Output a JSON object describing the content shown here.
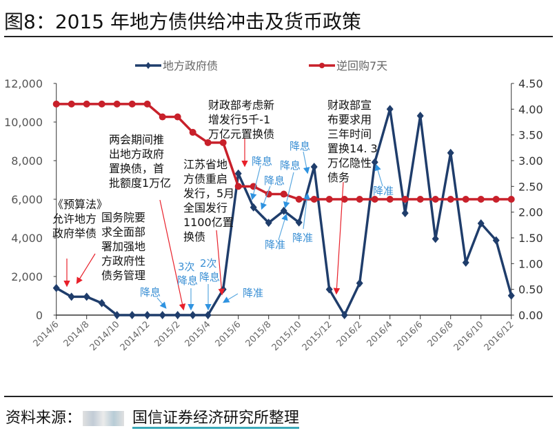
{
  "title": "图8：2015 年地方债供给冲击及货币政策",
  "source": {
    "label": "资料来源：",
    "org": "国信证券经济研究所整理"
  },
  "chart_data": {
    "type": "line",
    "title": "图8：2015 年地方债供给冲击及货币政策",
    "x": [
      "2014/6",
      "2014/7",
      "2014/8",
      "2014/9",
      "2014/10",
      "2014/11",
      "2014/12",
      "2015/1",
      "2015/2",
      "2015/3",
      "2015/4",
      "2015/5",
      "2015/6",
      "2015/7",
      "2015/8",
      "2015/9",
      "2015/10",
      "2015/11",
      "2015/12",
      "2016/1",
      "2016/2",
      "2016/3",
      "2016/4",
      "2016/5",
      "2016/6",
      "2016/7",
      "2016/8",
      "2016/9",
      "2016/10",
      "2016/11",
      "2016/12"
    ],
    "x_tick_labels": [
      "2014/6",
      "2014/8",
      "2014/10",
      "2014/12",
      "2015/2",
      "2015/4",
      "2015/6",
      "2015/8",
      "2015/10",
      "2015/12",
      "2016/2",
      "2016/4",
      "2016/6",
      "2016/8",
      "2016/10",
      "2016/12"
    ],
    "series": [
      {
        "name": "地方政府债",
        "axis": "left",
        "color": "#1f3d6b",
        "marker": "diamond",
        "values": [
          1400,
          950,
          950,
          620,
          0,
          0,
          0,
          0,
          0,
          0,
          0,
          1330,
          7330,
          5580,
          4780,
          5400,
          4800,
          7680,
          1330,
          0,
          1650,
          7920,
          10670,
          5280,
          10320,
          3950,
          8400,
          2720,
          4750,
          3870,
          1010
        ]
      },
      {
        "name": "逆回购7天",
        "axis": "right",
        "color": "#c8202a",
        "marker": "circle",
        "values": [
          4.1,
          4.1,
          4.1,
          4.1,
          4.1,
          4.1,
          4.1,
          3.85,
          3.85,
          3.55,
          3.35,
          3.35,
          2.5,
          2.5,
          2.35,
          2.35,
          2.25,
          2.25,
          2.25,
          2.25,
          2.25,
          2.25,
          2.25,
          2.25,
          2.25,
          2.25,
          2.25,
          2.25,
          2.25,
          2.25,
          2.25
        ]
      }
    ],
    "y_left": {
      "lim": [
        0,
        12000
      ],
      "ticks": [
        "0",
        "2,000",
        "4,000",
        "6,000",
        "8,000",
        "10,000",
        "12,000"
      ]
    },
    "y_right": {
      "lim": [
        0,
        4.5
      ],
      "ticks": [
        "0.00",
        "0.50",
        "1.00",
        "1.50",
        "2.00",
        "2.50",
        "3.00",
        "3.50",
        "4.00",
        "4.50"
      ]
    },
    "grid": false,
    "legend": "top",
    "annotations": [
      {
        "lines": [
          "《预算法》",
          "允许地方",
          "政府举债"
        ]
      },
      {
        "lines": [
          "国务院要",
          "求全面部",
          "署加强地",
          "方政府性",
          "债务管理"
        ]
      },
      {
        "lines": [
          "两会期间推",
          "出地方政府",
          "置换债，首",
          "批额度1万亿"
        ]
      },
      {
        "lines": [
          "江苏省地",
          "方债重启",
          "发行，5月",
          "全国发行",
          "1100亿置",
          "换债"
        ]
      },
      {
        "lines": [
          "财政部考虑新",
          "增发行5千-1",
          "万亿元置换债"
        ]
      },
      {
        "lines": [
          "财政部宣",
          "布要求用",
          "三年时间",
          "置换14. 3",
          "万亿隐性",
          "债务"
        ]
      }
    ],
    "policy_labels": [
      "降息",
      "3次",
      "降息",
      "2次",
      "降息",
      "降准",
      "降息",
      "降息",
      "降息",
      "降息",
      "降准",
      "降准",
      "降准"
    ]
  }
}
